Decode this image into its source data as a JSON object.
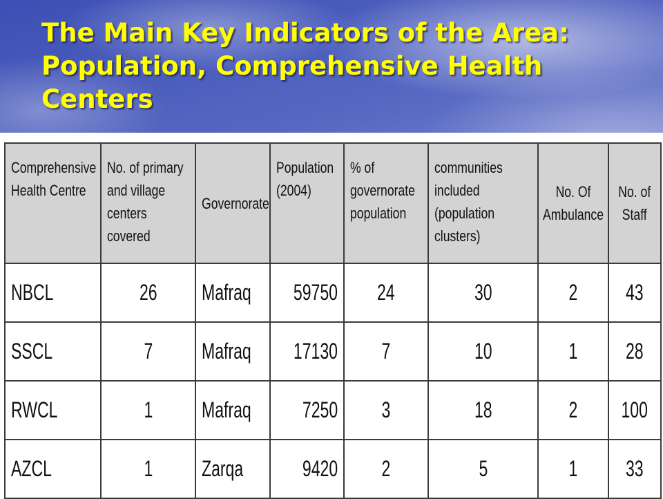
{
  "slide": {
    "title": "The Main Key Indicators of the Area: Population, Comprehensive Health Centers",
    "title_color": "#ffff00",
    "background_color": "#4f62c0"
  },
  "table": {
    "columns": [
      "Comprehensive Health Centre",
      "No. of primary and village centers covered",
      "Governorate",
      "Population (2004)",
      "% of governorate population",
      "communities included (population clusters)",
      "No. Of Ambulance",
      "No. of Staff"
    ],
    "rows": [
      {
        "centre": "NBCL",
        "centers_covered": "26",
        "governorate": "Mafraq",
        "population": "59750",
        "pct_population": "24",
        "communities": "30",
        "ambulance": "2",
        "staff": "43"
      },
      {
        "centre": "SSCL",
        "centers_covered": "7",
        "governorate": "Mafraq",
        "population": "17130",
        "pct_population": "7",
        "communities": "10",
        "ambulance": "1",
        "staff": "28"
      },
      {
        "centre": "RWCL",
        "centers_covered": "1",
        "governorate": "Mafraq",
        "population": "7250",
        "pct_population": "3",
        "communities": "18",
        "ambulance": "2",
        "staff": "100"
      },
      {
        "centre": "AZCL",
        "centers_covered": "1",
        "governorate": "Zarqa",
        "population": "9420",
        "pct_population": "2",
        "communities": "5",
        "ambulance": "1",
        "staff": "33"
      }
    ],
    "header_background": "#d3d3d3"
  }
}
